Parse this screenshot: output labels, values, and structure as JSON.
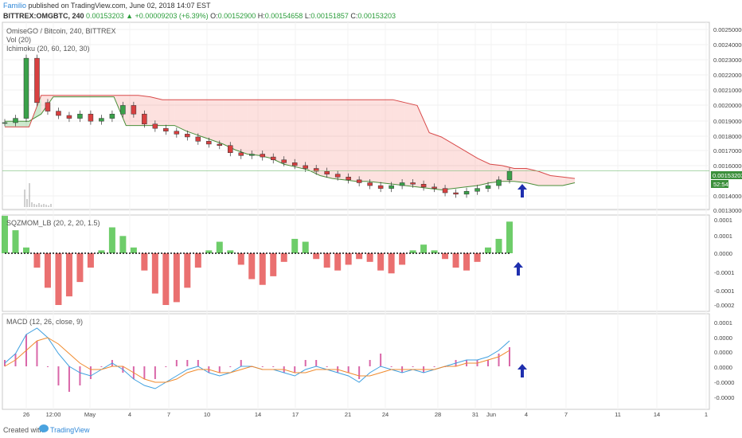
{
  "header": {
    "author": "Familio",
    "published": "published on TradingView.com, June 02, 2018 14:07 EST",
    "symbol": "BITTREX:OMGBTC, 240",
    "last": "0.00153203",
    "change": "+0.00009203 (+6.39%)",
    "ohlc": {
      "o": "0.00152900",
      "h": "0.00154658",
      "l": "0.00151857",
      "c": "0.00153203"
    }
  },
  "panes": {
    "main": {
      "title": "OmiseGO / Bitcoin, 240, BITTREX",
      "vol": "Vol (20)",
      "ichimoku": "Ichimoku (20, 60, 120, 30)"
    },
    "sqz": {
      "title": "SQZMOM_LB (20, 2, 20, 1.5)"
    },
    "macd": {
      "title": "MACD (12, 26, close, 9)"
    }
  },
  "price_badge": {
    "price": "0.00153203",
    "timer": "52:54"
  },
  "footer": {
    "created": "Created with",
    "brand": "TradingView"
  },
  "chart_data": [
    {
      "type": "candlestick",
      "pane": "main",
      "y_ticks": [
        "0.00250000",
        "0.00240000",
        "0.00230000",
        "0.00220000",
        "0.00210000",
        "0.00200000",
        "0.00190000",
        "0.00180000",
        "0.00170000",
        "0.00160000",
        "0.00140000",
        "0.00130000"
      ],
      "ylim": [
        0.00128,
        0.00256
      ],
      "x_ticks": [
        "26",
        "12:00",
        "May",
        "4",
        "7",
        "10",
        "14",
        "17",
        "21",
        "24",
        "28",
        "31",
        "Jun",
        "4",
        "7",
        "11",
        "14",
        "1"
      ],
      "price_path": [
        0.00187,
        0.0019,
        0.00232,
        0.00201,
        0.00195,
        0.00192,
        0.0019,
        0.00193,
        0.00188,
        0.0019,
        0.00193,
        0.00199,
        0.00193,
        0.00186,
        0.00183,
        0.00181,
        0.00179,
        0.00177,
        0.00174,
        0.00172,
        0.00171,
        0.00166,
        0.00164,
        0.00165,
        0.00163,
        0.00161,
        0.00159,
        0.00157,
        0.00155,
        0.00153,
        0.00151,
        0.00149,
        0.00147,
        0.00145,
        0.00143,
        0.00141,
        0.00143,
        0.00145,
        0.00144,
        0.00142,
        0.00141,
        0.00138,
        0.00137,
        0.00139,
        0.00141,
        0.00143,
        0.00147,
        0.00153
      ],
      "cloud_span_a": [
        0.00188,
        0.00188,
        0.00188,
        0.00193,
        0.00205,
        0.00205,
        0.00205,
        0.00205,
        0.00205,
        0.00205,
        0.00185,
        0.00185,
        0.00185,
        0.00185,
        0.00185,
        0.00181,
        0.00178,
        0.00175,
        0.00172,
        0.00168,
        0.00165,
        0.00164,
        0.00162,
        0.00158,
        0.00156,
        0.00154,
        0.0015,
        0.00148,
        0.00147,
        0.00146,
        0.00146,
        0.00145,
        0.00144,
        0.00143,
        0.00142,
        0.00141,
        0.0014,
        0.00141,
        0.00142,
        0.00143,
        0.00145,
        0.00146,
        0.00146,
        0.00145,
        0.00143,
        0.00143,
        0.00143,
        0.00145
      ],
      "cloud_span_b": [
        0.00184,
        0.00184,
        0.00184,
        0.00206,
        0.00206,
        0.00206,
        0.00206,
        0.00206,
        0.00206,
        0.00206,
        0.00206,
        0.00206,
        0.00205,
        0.00203,
        0.00203,
        0.00203,
        0.00203,
        0.00203,
        0.00203,
        0.00203,
        0.00203,
        0.00203,
        0.00203,
        0.00203,
        0.00203,
        0.00203,
        0.00203,
        0.00203,
        0.00203,
        0.00203,
        0.00203,
        0.00203,
        0.00203,
        0.00201,
        0.00199,
        0.0018,
        0.00177,
        0.00172,
        0.00167,
        0.00162,
        0.00158,
        0.00157,
        0.00155,
        0.00155,
        0.00153,
        0.0015,
        0.00149,
        0.00148
      ],
      "arrow": "up"
    },
    {
      "type": "bar",
      "pane": "sqz",
      "y_ticks": [
        "0.0001",
        "0.0001",
        "0.0000",
        "-0.0001",
        "-0.0001",
        "-0.0002"
      ],
      "values": [
        0.00013,
        8e-05,
        2e-05,
        -5e-05,
        -0.00012,
        -0.00018,
        -0.00015,
        -0.0001,
        -5e-05,
        1e-05,
        9e-05,
        6e-05,
        2e-05,
        -6e-05,
        -0.00014,
        -0.00018,
        -0.00017,
        -0.00012,
        -5e-05,
        1e-05,
        4e-05,
        1e-05,
        -4e-05,
        -9e-05,
        -0.00011,
        -8e-05,
        -3e-05,
        5e-05,
        4e-05,
        -2e-05,
        -5e-05,
        -6e-05,
        -4e-05,
        -2e-05,
        -3e-05,
        -6e-05,
        -7e-05,
        -4e-05,
        1e-05,
        3e-05,
        1e-05,
        -2e-05,
        -5e-05,
        -6e-05,
        -3e-05,
        2e-05,
        5e-05,
        0.00011
      ],
      "arrow": "up"
    },
    {
      "type": "line",
      "pane": "macd",
      "y_ticks": [
        "0.0001",
        "0.0000",
        "0.0000",
        "0.0000",
        "-0.0000",
        "-0.0000"
      ],
      "series": [
        {
          "values": [
            1e-05,
            4e-05,
            0.0001,
            0.00012,
            9e-05,
            4e-05,
            0.0,
            -2e-05,
            -3e-05,
            -1e-05,
            1e-05,
            -1e-05,
            -4e-05,
            -6e-05,
            -7e-05,
            -5e-05,
            -3e-05,
            -1e-05,
            0.0,
            -2e-05,
            -3e-05,
            -2e-05,
            0.0,
            0.0,
            -1e-05,
            -1e-05,
            -2e-05,
            -3e-05,
            -1e-05,
            0.0,
            -1e-05,
            -2e-05,
            -3e-05,
            -5e-05,
            -2e-05,
            0.0,
            -1e-05,
            -2e-05,
            -1e-05,
            -2e-05,
            -1e-05,
            0.0,
            1e-05,
            2e-05,
            2e-05,
            3e-05,
            5e-05,
            8e-05
          ]
        },
        {
          "values": [
            0.0,
            2e-05,
            5e-05,
            8e-05,
            9e-05,
            7e-05,
            4e-05,
            1e-05,
            -1e-05,
            -1e-05,
            0.0,
            0.0,
            -2e-05,
            -4e-05,
            -5e-05,
            -5e-05,
            -4e-05,
            -2e-05,
            -1e-05,
            -1e-05,
            -2e-05,
            -2e-05,
            -1e-05,
            0.0,
            -1e-05,
            -1e-05,
            -1e-05,
            -2e-05,
            -2e-05,
            -1e-05,
            -1e-05,
            -1e-05,
            -2e-05,
            -3e-05,
            -3e-05,
            -2e-05,
            -1e-05,
            -1e-05,
            -1e-05,
            -1e-05,
            -1e-05,
            0.0,
            0.0,
            1e-05,
            1e-05,
            2e-05,
            3e-05,
            5e-05
          ]
        }
      ],
      "arrow": "up"
    }
  ]
}
